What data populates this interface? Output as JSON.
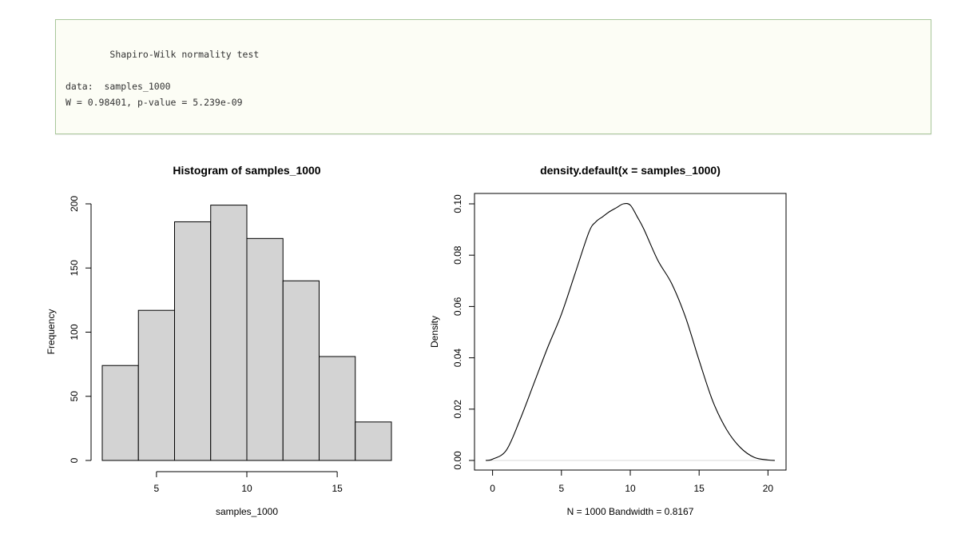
{
  "console": {
    "test_name": "\tShapiro-Wilk normality test",
    "data_line": "data:  samples_1000",
    "result_line": "W = 0.98401, p-value = 5.239e-09"
  },
  "chart_data": [
    {
      "type": "bar",
      "title": "Histogram of samples_1000",
      "xlabel": "samples_1000",
      "ylabel": "Frequency",
      "bin_edges": [
        2,
        4,
        6,
        8,
        10,
        12,
        14,
        16,
        18
      ],
      "values": [
        74,
        117,
        186,
        199,
        173,
        140,
        81,
        30
      ],
      "xlim": [
        2,
        18
      ],
      "ylim": [
        0,
        200
      ],
      "xticks": [
        5,
        10,
        15
      ],
      "yticks": [
        0,
        50,
        100,
        150,
        200
      ],
      "bar_fill": "#d3d3d3"
    },
    {
      "type": "line",
      "title": "density.default(x = samples_1000)",
      "xlabel": "N = 1000   Bandwidth = 0.8167",
      "ylabel": "Density",
      "x": [
        -0.5,
        0,
        1,
        2,
        3,
        4,
        5,
        6,
        7,
        7.5,
        8,
        8.5,
        9,
        9.5,
        10,
        10.5,
        11,
        12,
        13,
        14,
        15,
        16,
        17,
        18,
        19,
        20,
        20.5
      ],
      "y": [
        0.0,
        0.0005,
        0.004,
        0.016,
        0.03,
        0.044,
        0.057,
        0.073,
        0.089,
        0.093,
        0.095,
        0.097,
        0.0985,
        0.1,
        0.0995,
        0.095,
        0.09,
        0.078,
        0.069,
        0.056,
        0.039,
        0.023,
        0.012,
        0.005,
        0.0012,
        0.0002,
        0.0
      ],
      "xlim": [
        -0.5,
        20.5
      ],
      "ylim": [
        0,
        0.1
      ],
      "xticks": [
        0,
        5,
        10,
        15,
        20
      ],
      "yticks": [
        "0.00",
        "0.02",
        "0.04",
        "0.06",
        "0.08",
        "0.10"
      ]
    }
  ]
}
